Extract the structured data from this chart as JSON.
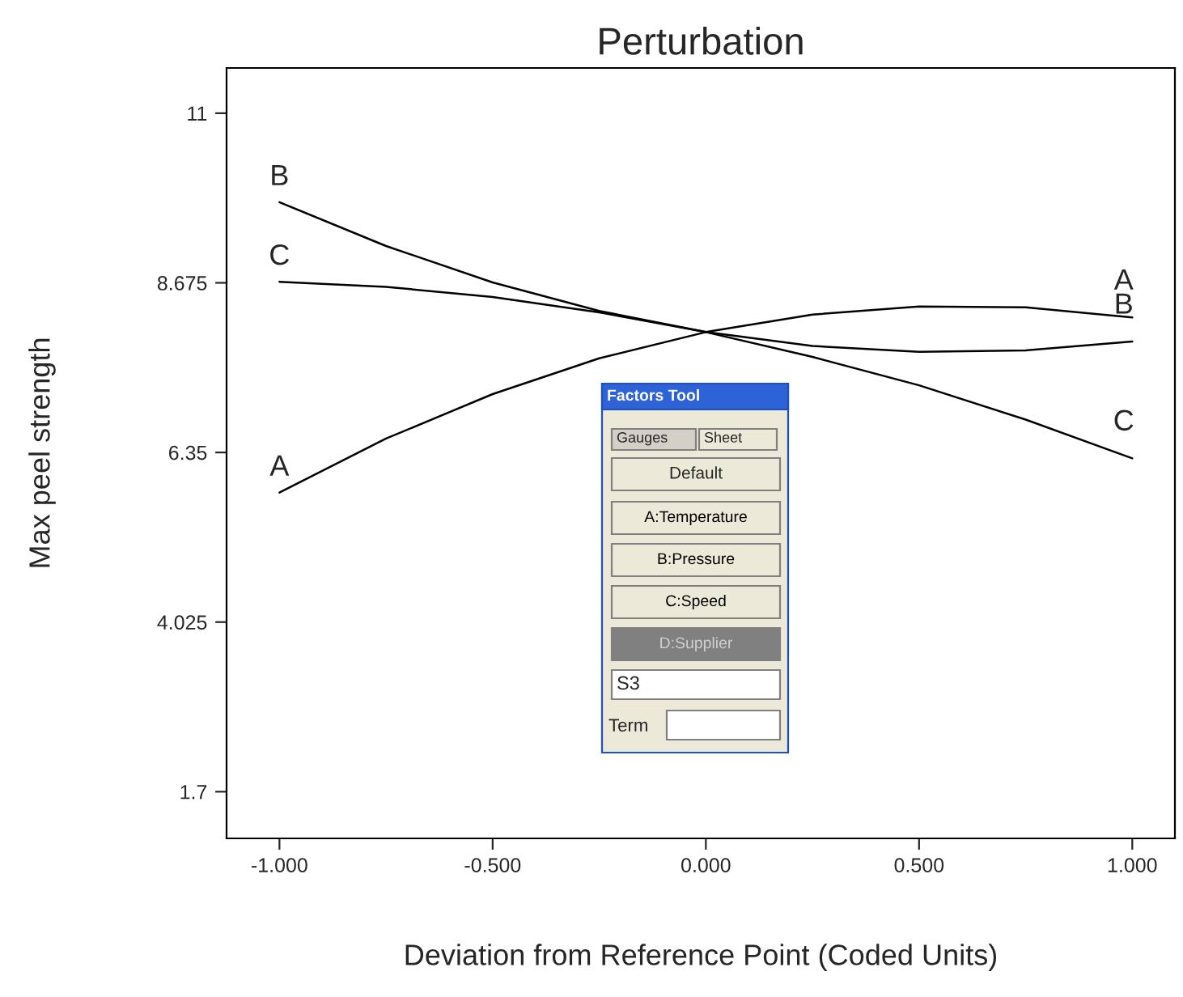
{
  "chart_data": {
    "type": "line",
    "title": "Perturbation",
    "xlabel": "Deviation from Reference Point (Coded Units)",
    "ylabel": "Max peel strength",
    "x": [
      -1,
      -0.75,
      -0.5,
      -0.25,
      0,
      0.25,
      0.5,
      0.75,
      1
    ],
    "series": [
      {
        "name": "A",
        "color": "#000000",
        "values": [
          5.8,
          6.54,
          7.15,
          7.64,
          8.0,
          8.24,
          8.35,
          8.34,
          8.2
        ]
      },
      {
        "name": "B",
        "color": "#000000",
        "values": [
          9.78,
          9.18,
          8.68,
          8.29,
          8.0,
          7.81,
          7.73,
          7.75,
          7.87
        ]
      },
      {
        "name": "C",
        "color": "#000000",
        "values": [
          8.69,
          8.62,
          8.48,
          8.27,
          8.0,
          7.66,
          7.27,
          6.8,
          6.27
        ]
      }
    ],
    "xlim": [
      -1.124,
      1.1
    ],
    "ylim": [
      1.06,
      11.62
    ],
    "xticks": [
      {
        "value": -1,
        "label": "-1.000"
      },
      {
        "value": -0.5,
        "label": "-0.500"
      },
      {
        "value": 0,
        "label": "0.000"
      },
      {
        "value": 0.5,
        "label": "0.500"
      },
      {
        "value": 1,
        "label": "1.000"
      }
    ],
    "yticks": [
      1.7,
      4.025,
      6.35,
      8.675,
      11
    ],
    "grid": false,
    "legend": false,
    "marker": "none",
    "line_style": "solid",
    "annotations": [
      "Factors Tool",
      "Gauges",
      "Sheet",
      "Default",
      "A:Temperature",
      "B:Pressure",
      "C:Speed",
      "D:Supplier",
      "S3",
      "Term"
    ]
  }
}
